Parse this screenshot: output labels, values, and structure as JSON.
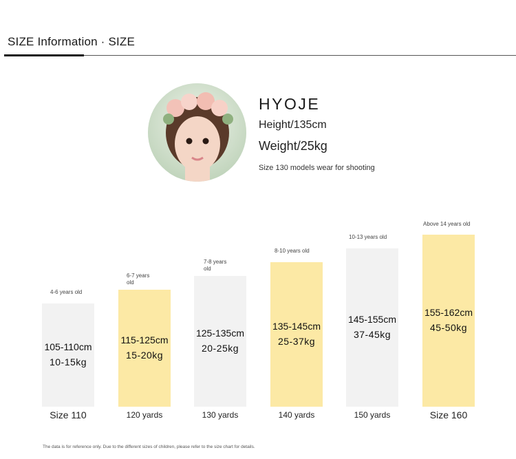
{
  "header": {
    "title": "SIZE Information · SIZE"
  },
  "model": {
    "name": "HYOJE",
    "height": "Height/135cm",
    "weight": "Weight/25kg",
    "note": "Size 130 models wear for shooting",
    "avatar_icon": "child-model-photo"
  },
  "sizes": [
    {
      "age": "4-6 years old",
      "height": "105-110cm",
      "weight": "10-15kg",
      "label": "Size 110",
      "color": "#f2f2f2"
    },
    {
      "age": "6-7 years old",
      "height": "115-125cm",
      "weight": "15-20kg",
      "label": "120 yards",
      "color": "#fce9a5"
    },
    {
      "age": "7-8 years old",
      "height": "125-135cm",
      "weight": "20-25kg",
      "label": "130 yards",
      "color": "#f2f2f2"
    },
    {
      "age": "8-10 years old",
      "height": "135-145cm",
      "weight": "25-37kg",
      "label": "140 yards",
      "color": "#fce9a5"
    },
    {
      "age": "10-13 years old",
      "height": "145-155cm",
      "weight": "37-45kg",
      "label": "150 yards",
      "color": "#f2f2f2"
    },
    {
      "age": "Above 14 years old",
      "height": "155-162cm",
      "weight": "45-50kg",
      "label": "Size 160",
      "color": "#fce9a5"
    }
  ],
  "footnote": "The data is for reference only. Due to the different sizes of children, please refer to the size chart for details."
}
